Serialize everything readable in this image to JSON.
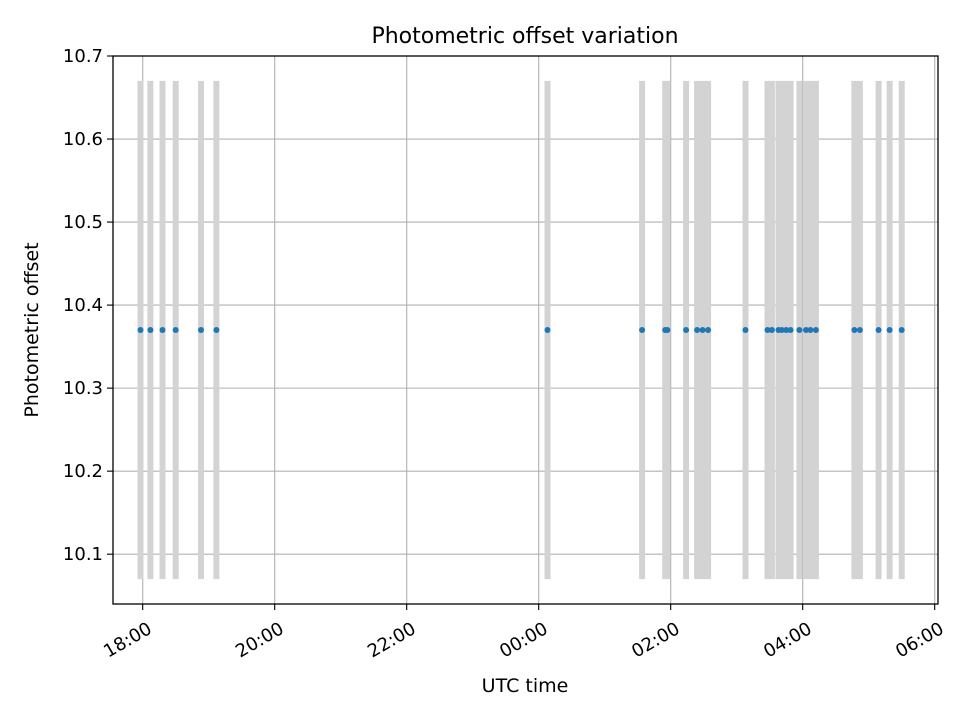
{
  "chart_data": {
    "type": "scatter",
    "title": "Photometric offset variation",
    "xlabel": "UTC time",
    "ylabel": "Photometric offset",
    "x_axis": {
      "kind": "time",
      "min": "2000-01-01T17:33",
      "max": "2000-01-02T06:03",
      "tick_times": [
        "2000-01-01T18:00",
        "2000-01-01T20:00",
        "2000-01-01T22:00",
        "2000-01-02T00:00",
        "2000-01-02T02:00",
        "2000-01-02T04:00",
        "2000-01-02T06:00"
      ],
      "tick_labels": [
        "18:00",
        "20:00",
        "22:00",
        "00:00",
        "02:00",
        "04:00",
        "06:00"
      ]
    },
    "y_axis": {
      "min": 10.04,
      "max": 10.7,
      "ticks": [
        10.1,
        10.2,
        10.3,
        10.4,
        10.5,
        10.6,
        10.7
      ],
      "tick_labels": [
        "10.1",
        "10.2",
        "10.3",
        "10.4",
        "10.5",
        "10.6",
        "10.7"
      ]
    },
    "grid": true,
    "legend": "none",
    "series": [
      {
        "marker_color": "#1f77b4",
        "x": [
          "2000-01-01T17:58",
          "2000-01-01T18:07",
          "2000-01-01T18:18",
          "2000-01-01T18:30",
          "2000-01-01T18:53",
          "2000-01-01T19:07",
          "2000-01-02T00:08",
          "2000-01-02T01:34",
          "2000-01-02T01:55",
          "2000-01-02T01:57",
          "2000-01-02T02:14",
          "2000-01-02T02:24",
          "2000-01-02T02:29",
          "2000-01-02T02:34",
          "2000-01-02T03:08",
          "2000-01-02T03:28",
          "2000-01-02T03:32",
          "2000-01-02T03:38",
          "2000-01-02T03:41",
          "2000-01-02T03:45",
          "2000-01-02T03:49",
          "2000-01-02T03:57",
          "2000-01-02T04:03",
          "2000-01-02T04:07",
          "2000-01-02T04:12",
          "2000-01-02T04:47",
          "2000-01-02T04:52",
          "2000-01-02T05:09",
          "2000-01-02T05:19",
          "2000-01-02T05:30"
        ],
        "y": [
          10.37,
          10.37,
          10.37,
          10.37,
          10.37,
          10.37,
          10.37,
          10.37,
          10.37,
          10.37,
          10.37,
          10.37,
          10.37,
          10.37,
          10.37,
          10.37,
          10.37,
          10.37,
          10.37,
          10.37,
          10.37,
          10.37,
          10.37,
          10.37,
          10.37,
          10.37,
          10.37,
          10.37,
          10.37,
          10.37
        ]
      }
    ],
    "vertical_bands": {
      "color": "#d3d3d3",
      "y_range": [
        10.07,
        10.67
      ],
      "x": [
        "2000-01-01T17:58",
        "2000-01-01T18:07",
        "2000-01-01T18:18",
        "2000-01-01T18:30",
        "2000-01-01T18:53",
        "2000-01-01T19:07",
        "2000-01-02T00:08",
        "2000-01-02T01:34",
        "2000-01-02T01:55",
        "2000-01-02T01:57",
        "2000-01-02T02:14",
        "2000-01-02T02:24",
        "2000-01-02T02:29",
        "2000-01-02T02:34",
        "2000-01-02T03:08",
        "2000-01-02T03:28",
        "2000-01-02T03:32",
        "2000-01-02T03:38",
        "2000-01-02T03:41",
        "2000-01-02T03:45",
        "2000-01-02T03:49",
        "2000-01-02T03:57",
        "2000-01-02T04:03",
        "2000-01-02T04:07",
        "2000-01-02T04:12",
        "2000-01-02T04:47",
        "2000-01-02T04:52",
        "2000-01-02T05:09",
        "2000-01-02T05:19",
        "2000-01-02T05:30"
      ]
    }
  }
}
